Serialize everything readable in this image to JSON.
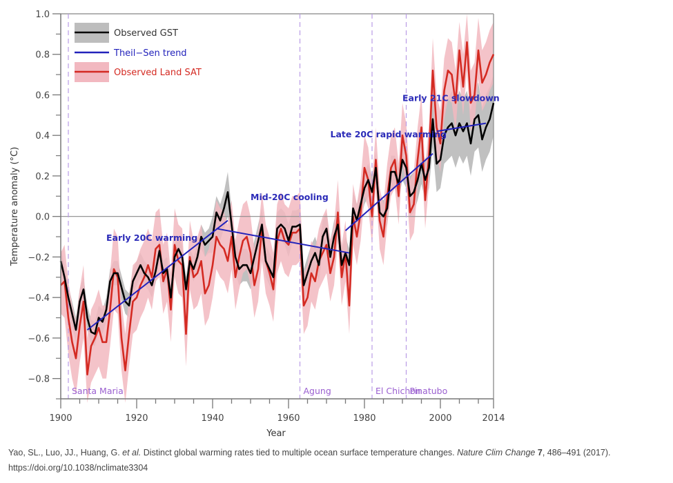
{
  "chart_data": {
    "type": "line",
    "title": "",
    "xlabel": "Year",
    "ylabel": "Temperature anomaly (°C)",
    "xlim": [
      1900,
      2014
    ],
    "ylim": [
      -0.9,
      1.0
    ],
    "x_ticks": [
      1900,
      1920,
      1940,
      1960,
      1980,
      2000,
      2014
    ],
    "x_tick_labels": [
      "1900",
      "1920",
      "1940",
      "1960",
      "1980",
      "2000",
      "2014"
    ],
    "y_ticks": [
      1.0,
      0.8,
      0.6,
      0.4,
      0.2,
      0.0,
      -0.2,
      -0.4,
      -0.6,
      -0.8
    ],
    "y_tick_labels": [
      "1.0",
      "0.8",
      "0.6",
      "0.4",
      "0.2",
      "0.0",
      "−0.2",
      "−0.4",
      "−0.6",
      "−0.8"
    ],
    "grid": false,
    "zero_line": true,
    "legend": {
      "placement": "top-left",
      "entries": [
        {
          "label": "Observed GST",
          "color": "#000000",
          "band_color": "#bdbdbd"
        },
        {
          "label": "Theil−Sen trend",
          "color": "#2222bb"
        },
        {
          "label": "Observed Land SAT",
          "color": "#d42a22",
          "band_color": "#f2b8c0"
        }
      ]
    },
    "x": [
      1900,
      1901,
      1902,
      1903,
      1904,
      1905,
      1906,
      1907,
      1908,
      1909,
      1910,
      1911,
      1912,
      1913,
      1914,
      1915,
      1916,
      1917,
      1918,
      1919,
      1920,
      1921,
      1922,
      1923,
      1924,
      1925,
      1926,
      1927,
      1928,
      1929,
      1930,
      1931,
      1932,
      1933,
      1934,
      1935,
      1936,
      1937,
      1938,
      1939,
      1940,
      1941,
      1942,
      1943,
      1944,
      1945,
      1946,
      1947,
      1948,
      1949,
      1950,
      1951,
      1952,
      1953,
      1954,
      1955,
      1956,
      1957,
      1958,
      1959,
      1960,
      1961,
      1962,
      1963,
      1964,
      1965,
      1966,
      1967,
      1968,
      1969,
      1970,
      1971,
      1972,
      1973,
      1974,
      1975,
      1976,
      1977,
      1978,
      1979,
      1980,
      1981,
      1982,
      1983,
      1984,
      1985,
      1986,
      1987,
      1988,
      1989,
      1990,
      1991,
      1992,
      1993,
      1994,
      1995,
      1996,
      1997,
      1998,
      1999,
      2000,
      2001,
      2002,
      2003,
      2004,
      2005,
      2006,
      2007,
      2008,
      2009,
      2010,
      2011,
      2012,
      2013,
      2014
    ],
    "series": [
      {
        "name": "Observed GST",
        "color": "#000000",
        "values": [
          -0.22,
          -0.3,
          -0.4,
          -0.48,
          -0.56,
          -0.42,
          -0.36,
          -0.5,
          -0.57,
          -0.58,
          -0.5,
          -0.52,
          -0.46,
          -0.32,
          -0.28,
          -0.28,
          -0.35,
          -0.42,
          -0.44,
          -0.32,
          -0.28,
          -0.24,
          -0.28,
          -0.3,
          -0.34,
          -0.27,
          -0.17,
          -0.28,
          -0.26,
          -0.4,
          -0.2,
          -0.16,
          -0.2,
          -0.36,
          -0.22,
          -0.26,
          -0.2,
          -0.1,
          -0.14,
          -0.12,
          -0.1,
          0.02,
          -0.02,
          0.04,
          0.12,
          -0.04,
          -0.2,
          -0.26,
          -0.24,
          -0.24,
          -0.28,
          -0.2,
          -0.12,
          -0.04,
          -0.22,
          -0.26,
          -0.3,
          -0.06,
          -0.04,
          -0.06,
          -0.12,
          -0.05,
          -0.05,
          -0.04,
          -0.34,
          -0.28,
          -0.22,
          -0.18,
          -0.24,
          -0.1,
          -0.06,
          -0.2,
          -0.1,
          -0.04,
          -0.24,
          -0.18,
          -0.24,
          0.04,
          -0.02,
          0.06,
          0.14,
          0.18,
          0.12,
          0.24,
          0.02,
          0.0,
          0.04,
          0.22,
          0.22,
          0.16,
          0.28,
          0.24,
          0.1,
          0.12,
          0.18,
          0.26,
          0.18,
          0.24,
          0.48,
          0.26,
          0.28,
          0.4,
          0.44,
          0.46,
          0.4,
          0.46,
          0.42,
          0.46,
          0.36,
          0.48,
          0.5,
          0.38,
          0.44,
          0.48,
          0.56
        ]
      },
      {
        "name": "Observed Land SAT",
        "color": "#d42a22",
        "values": [
          -0.34,
          -0.32,
          -0.5,
          -0.62,
          -0.7,
          -0.54,
          -0.42,
          -0.78,
          -0.64,
          -0.6,
          -0.55,
          -0.62,
          -0.62,
          -0.46,
          -0.26,
          -0.3,
          -0.6,
          -0.76,
          -0.58,
          -0.42,
          -0.4,
          -0.34,
          -0.3,
          -0.24,
          -0.3,
          -0.16,
          -0.14,
          -0.32,
          -0.26,
          -0.46,
          -0.14,
          -0.22,
          -0.24,
          -0.58,
          -0.2,
          -0.3,
          -0.28,
          -0.22,
          -0.38,
          -0.34,
          -0.24,
          -0.1,
          -0.14,
          -0.16,
          -0.22,
          -0.1,
          -0.3,
          -0.2,
          -0.12,
          -0.1,
          -0.18,
          -0.34,
          -0.26,
          -0.06,
          -0.22,
          -0.28,
          -0.36,
          -0.12,
          -0.06,
          -0.12,
          -0.14,
          -0.08,
          -0.08,
          -0.06,
          -0.44,
          -0.4,
          -0.28,
          -0.32,
          -0.22,
          -0.18,
          -0.14,
          -0.28,
          -0.2,
          0.02,
          -0.3,
          -0.18,
          -0.44,
          0.0,
          -0.1,
          0.02,
          0.24,
          0.18,
          0.0,
          0.28,
          -0.02,
          -0.1,
          0.1,
          0.24,
          0.28,
          0.1,
          0.4,
          0.3,
          0.02,
          0.06,
          0.28,
          0.44,
          0.08,
          0.3,
          0.72,
          0.44,
          0.36,
          0.62,
          0.72,
          0.7,
          0.56,
          0.82,
          0.64,
          0.86,
          0.56,
          0.6,
          0.82,
          0.66,
          0.7,
          0.76,
          0.8
        ]
      }
    ],
    "bands": [
      {
        "name": "Observed GST range",
        "color": "#bdbdbd",
        "lower": [
          -0.28,
          -0.36,
          -0.46,
          -0.54,
          -0.62,
          -0.48,
          -0.42,
          -0.56,
          -0.63,
          -0.64,
          -0.56,
          -0.58,
          -0.52,
          -0.38,
          -0.34,
          -0.34,
          -0.41,
          -0.48,
          -0.5,
          -0.38,
          -0.34,
          -0.3,
          -0.34,
          -0.36,
          -0.4,
          -0.33,
          -0.23,
          -0.34,
          -0.32,
          -0.46,
          -0.26,
          -0.22,
          -0.26,
          -0.42,
          -0.28,
          -0.32,
          -0.26,
          -0.16,
          -0.2,
          -0.18,
          -0.18,
          -0.08,
          -0.12,
          -0.06,
          0.0,
          -0.14,
          -0.28,
          -0.34,
          -0.32,
          -0.32,
          -0.36,
          -0.28,
          -0.2,
          -0.12,
          -0.3,
          -0.34,
          -0.38,
          -0.14,
          -0.12,
          -0.14,
          -0.2,
          -0.13,
          -0.13,
          -0.12,
          -0.42,
          -0.36,
          -0.3,
          -0.26,
          -0.32,
          -0.18,
          -0.14,
          -0.28,
          -0.18,
          -0.12,
          -0.32,
          -0.26,
          -0.32,
          -0.04,
          -0.1,
          -0.02,
          0.06,
          0.1,
          0.04,
          0.16,
          -0.06,
          -0.08,
          -0.04,
          0.14,
          0.14,
          0.08,
          0.18,
          0.14,
          0.0,
          0.02,
          0.08,
          0.16,
          0.08,
          0.14,
          0.34,
          0.12,
          0.14,
          0.26,
          0.28,
          0.3,
          0.24,
          0.3,
          0.26,
          0.3,
          0.2,
          0.32,
          0.34,
          0.22,
          0.28,
          0.32,
          0.4
        ],
        "upper": [
          -0.16,
          -0.24,
          -0.34,
          -0.42,
          -0.5,
          -0.36,
          -0.3,
          -0.44,
          -0.51,
          -0.52,
          -0.44,
          -0.46,
          -0.4,
          -0.26,
          -0.22,
          -0.22,
          -0.29,
          -0.36,
          -0.38,
          -0.26,
          -0.22,
          -0.18,
          -0.22,
          -0.24,
          -0.28,
          -0.21,
          -0.11,
          -0.22,
          -0.2,
          -0.34,
          -0.14,
          -0.1,
          -0.14,
          -0.3,
          -0.16,
          -0.2,
          -0.14,
          -0.04,
          -0.08,
          -0.06,
          0.0,
          0.1,
          0.06,
          0.12,
          0.22,
          0.04,
          -0.12,
          -0.18,
          -0.16,
          -0.16,
          -0.2,
          -0.12,
          -0.04,
          0.04,
          -0.14,
          -0.18,
          -0.22,
          0.02,
          0.04,
          0.02,
          -0.04,
          0.03,
          0.03,
          0.04,
          -0.26,
          -0.2,
          -0.14,
          -0.1,
          -0.16,
          -0.02,
          0.02,
          -0.12,
          -0.02,
          0.04,
          -0.16,
          -0.1,
          -0.16,
          0.12,
          0.06,
          0.14,
          0.22,
          0.26,
          0.2,
          0.32,
          0.1,
          0.08,
          0.12,
          0.3,
          0.3,
          0.24,
          0.38,
          0.34,
          0.2,
          0.22,
          0.28,
          0.36,
          0.28,
          0.34,
          0.62,
          0.4,
          0.42,
          0.54,
          0.58,
          0.62,
          0.56,
          0.62,
          0.58,
          0.62,
          0.52,
          0.64,
          0.66,
          0.54,
          0.6,
          0.64,
          0.7
        ]
      },
      {
        "name": "Observed Land SAT range",
        "color": "#f2b8c0",
        "lower": [
          -0.48,
          -0.5,
          -0.68,
          -0.8,
          -0.88,
          -0.72,
          -0.6,
          -0.92,
          -0.82,
          -0.78,
          -0.74,
          -0.8,
          -0.8,
          -0.64,
          -0.46,
          -0.48,
          -0.76,
          -0.92,
          -0.74,
          -0.58,
          -0.56,
          -0.5,
          -0.46,
          -0.4,
          -0.46,
          -0.32,
          -0.3,
          -0.48,
          -0.42,
          -0.62,
          -0.3,
          -0.38,
          -0.4,
          -0.74,
          -0.36,
          -0.46,
          -0.44,
          -0.38,
          -0.54,
          -0.5,
          -0.4,
          -0.26,
          -0.3,
          -0.32,
          -0.38,
          -0.26,
          -0.46,
          -0.36,
          -0.28,
          -0.26,
          -0.34,
          -0.5,
          -0.42,
          -0.22,
          -0.38,
          -0.44,
          -0.52,
          -0.28,
          -0.22,
          -0.28,
          -0.3,
          -0.24,
          -0.24,
          -0.22,
          -0.58,
          -0.54,
          -0.42,
          -0.46,
          -0.36,
          -0.32,
          -0.28,
          -0.42,
          -0.34,
          -0.12,
          -0.44,
          -0.32,
          -0.58,
          -0.14,
          -0.24,
          -0.12,
          0.1,
          0.04,
          -0.14,
          0.14,
          -0.16,
          -0.24,
          -0.04,
          0.1,
          0.14,
          -0.04,
          0.26,
          0.16,
          -0.12,
          -0.08,
          0.14,
          0.3,
          -0.06,
          0.16,
          0.58,
          0.3,
          0.22,
          0.48,
          0.58,
          0.56,
          0.42,
          0.68,
          0.5,
          0.72,
          0.42,
          0.46,
          0.68,
          0.52,
          0.56,
          0.62,
          0.66
        ],
        "upper": [
          -0.18,
          -0.14,
          -0.32,
          -0.44,
          -0.52,
          -0.36,
          -0.24,
          -0.6,
          -0.46,
          -0.42,
          -0.36,
          -0.44,
          -0.44,
          -0.28,
          -0.06,
          -0.1,
          -0.42,
          -0.58,
          -0.4,
          -0.24,
          -0.22,
          -0.16,
          -0.12,
          -0.06,
          -0.12,
          0.02,
          0.04,
          -0.14,
          -0.08,
          -0.28,
          0.04,
          -0.04,
          -0.06,
          -0.4,
          -0.02,
          -0.12,
          -0.1,
          -0.04,
          -0.2,
          -0.16,
          -0.06,
          0.08,
          0.04,
          0.02,
          -0.04,
          0.08,
          -0.12,
          -0.02,
          0.06,
          0.08,
          0.0,
          -0.16,
          -0.08,
          0.12,
          -0.04,
          -0.1,
          -0.18,
          0.06,
          0.12,
          0.06,
          0.04,
          0.1,
          0.1,
          0.12,
          -0.28,
          -0.24,
          -0.12,
          -0.16,
          -0.06,
          0.0,
          0.04,
          -0.12,
          -0.04,
          0.18,
          -0.14,
          -0.02,
          -0.28,
          0.16,
          0.06,
          0.18,
          0.4,
          0.34,
          0.16,
          0.44,
          0.14,
          0.06,
          0.26,
          0.4,
          0.44,
          0.26,
          0.56,
          0.46,
          0.18,
          0.22,
          0.44,
          0.6,
          0.24,
          0.46,
          0.88,
          0.6,
          0.52,
          0.78,
          0.88,
          0.86,
          0.72,
          0.96,
          0.8,
          1.0,
          0.72,
          0.76,
          0.98,
          0.82,
          0.86,
          0.92,
          0.96
        ]
      }
    ],
    "trends": [
      {
        "name": "Early 20C warming",
        "x": [
          1907,
          1944
        ],
        "y": [
          -0.56,
          -0.02
        ]
      },
      {
        "name": "Mid-20C cooling",
        "x": [
          1941,
          1976
        ],
        "y": [
          -0.06,
          -0.18
        ]
      },
      {
        "name": "Late 20C rapid warming",
        "x": [
          1975,
          1998
        ],
        "y": [
          -0.07,
          0.31
        ]
      },
      {
        "name": "Early 21C slowdown",
        "x": [
          1999,
          2012
        ],
        "y": [
          0.42,
          0.46
        ]
      }
    ],
    "annotations": [
      {
        "text": "Early 20C warming",
        "x": 1912,
        "y": -0.12
      },
      {
        "text": "Mid-20C cooling",
        "x": 1950,
        "y": 0.08
      },
      {
        "text": "Late 20C rapid warming",
        "x": 1971,
        "y": 0.39
      },
      {
        "text": "Early 21C slowdown",
        "x": 1990,
        "y": 0.57
      }
    ],
    "volcanoes": [
      {
        "name": "Santa Maria",
        "year": 1902
      },
      {
        "name": "Agung",
        "year": 1963
      },
      {
        "name": "El Chichon",
        "year": 1982
      },
      {
        "name": "Pinatubo",
        "year": 1991
      }
    ]
  },
  "caption": {
    "authors": "Yao, SL., Luo, JJ., Huang, G. ",
    "etal": "et al.",
    "title": " Distinct global warming rates tied to multiple ocean surface temperature changes. ",
    "journal": "Nature Clim Change",
    "volume": "7",
    "pages": ", 486–491 (2017).",
    "doi": "https://doi.org/10.1038/nclimate3304"
  }
}
